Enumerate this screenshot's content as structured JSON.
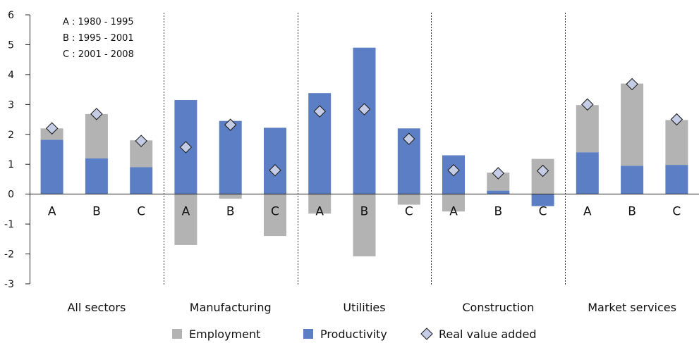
{
  "chart_data": {
    "type": "bar",
    "stacked": true,
    "ylim": [
      -3,
      6
    ],
    "yticks": [
      -3,
      -2,
      -1,
      0,
      1,
      2,
      3,
      4,
      5,
      6
    ],
    "bar_labels": [
      "A",
      "B",
      "C"
    ],
    "period_key": [
      "A : 1980 - 1995",
      "B : 1995 - 2001",
      "C : 2001 - 2008"
    ],
    "groups": [
      {
        "label": "All sectors",
        "bars": [
          {
            "bar": "A",
            "employment": 0.38,
            "productivity": 1.82,
            "real_value_added": 2.2
          },
          {
            "bar": "B",
            "employment": 1.48,
            "productivity": 1.2,
            "real_value_added": 2.68
          },
          {
            "bar": "C",
            "employment": 0.9,
            "productivity": 0.9,
            "real_value_added": 1.78
          }
        ]
      },
      {
        "label": "Manufacturing",
        "bars": [
          {
            "bar": "A",
            "employment": -1.7,
            "productivity": 3.15,
            "real_value_added": 1.57
          },
          {
            "bar": "B",
            "employment": -0.15,
            "productivity": 2.45,
            "real_value_added": 2.32
          },
          {
            "bar": "C",
            "employment": -1.4,
            "productivity": 2.22,
            "real_value_added": 0.8
          }
        ]
      },
      {
        "label": "Utilities",
        "bars": [
          {
            "bar": "A",
            "employment": -0.65,
            "productivity": 3.38,
            "real_value_added": 2.77
          },
          {
            "bar": "B",
            "employment": -2.08,
            "productivity": 4.9,
            "real_value_added": 2.84
          },
          {
            "bar": "C",
            "employment": -0.35,
            "productivity": 2.2,
            "real_value_added": 1.85
          }
        ]
      },
      {
        "label": "Construction",
        "bars": [
          {
            "bar": "A",
            "employment": -0.58,
            "productivity": 1.3,
            "real_value_added": 0.8
          },
          {
            "bar": "B",
            "employment": 0.6,
            "productivity": 0.12,
            "real_value_added": 0.7
          },
          {
            "bar": "C",
            "employment": 1.18,
            "productivity": -0.4,
            "real_value_added": 0.78
          }
        ]
      },
      {
        "label": "Market services",
        "bars": [
          {
            "bar": "A",
            "employment": 1.58,
            "productivity": 1.4,
            "real_value_added": 3.0
          },
          {
            "bar": "B",
            "employment": 2.75,
            "productivity": 0.95,
            "real_value_added": 3.68
          },
          {
            "bar": "C",
            "employment": 1.5,
            "productivity": 0.98,
            "real_value_added": 2.5
          }
        ]
      }
    ],
    "legend": {
      "position": "bottom",
      "entries": [
        {
          "key": "employment",
          "label": "Employment",
          "color": "#b3b3b3"
        },
        {
          "key": "productivity",
          "label": "Productivity",
          "color": "#5b7ec4"
        },
        {
          "key": "real_value_added",
          "label": "Real value added",
          "color": "#c5cde6",
          "marker": "diamond"
        }
      ]
    },
    "grid": false
  }
}
